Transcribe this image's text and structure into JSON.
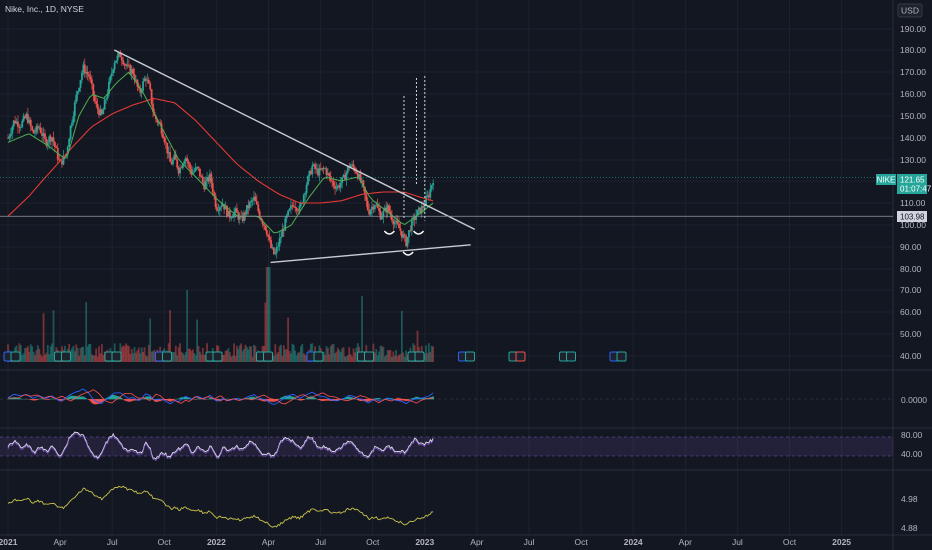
{
  "chart_data": {
    "type": "candlestick",
    "title": "Nike, Inc., 1D, NYSE",
    "currency": "USD",
    "symbol": "NIKE",
    "last_price": "121.65",
    "countdown": "01:07:47",
    "level_label": "103.98",
    "price_axis": [
      "190.00",
      "180.00",
      "170.00",
      "160.00",
      "150.00",
      "140.00",
      "130.00",
      "120.00",
      "110.00",
      "100.00",
      "90.00",
      "80.00",
      "70.00",
      "60.00",
      "50.00",
      "40.00"
    ],
    "price_ylim": [
      38,
      195
    ],
    "time_axis": [
      "2021",
      "Apr",
      "Jul",
      "Oct",
      "2022",
      "Apr",
      "Jul",
      "Oct",
      "2023",
      "Apr",
      "Jul",
      "Oct",
      "2024",
      "Apr",
      "Jul",
      "Oct",
      "2025"
    ],
    "time_axis_bold": [
      "2021",
      "2022",
      "2023",
      "2024",
      "2025"
    ],
    "price_path": [
      [
        0.0,
        140
      ],
      [
        0.03,
        148
      ],
      [
        0.06,
        146
      ],
      [
        0.09,
        150
      ],
      [
        0.12,
        142
      ],
      [
        0.15,
        145
      ],
      [
        0.18,
        138
      ],
      [
        0.21,
        141
      ],
      [
        0.25,
        128
      ],
      [
        0.28,
        133
      ],
      [
        0.3,
        145
      ],
      [
        0.33,
        160
      ],
      [
        0.36,
        172
      ],
      [
        0.39,
        168
      ],
      [
        0.42,
        155
      ],
      [
        0.45,
        150
      ],
      [
        0.48,
        162
      ],
      [
        0.51,
        175
      ],
      [
        0.54,
        178
      ],
      [
        0.57,
        172
      ],
      [
        0.6,
        170
      ],
      [
        0.63,
        160
      ],
      [
        0.66,
        168
      ],
      [
        0.68,
        162
      ],
      [
        0.7,
        150
      ],
      [
        0.73,
        146
      ],
      [
        0.75,
        140
      ],
      [
        0.78,
        128
      ],
      [
        0.8,
        131
      ],
      [
        0.82,
        125
      ],
      [
        0.85,
        132
      ],
      [
        0.88,
        124
      ],
      [
        0.91,
        126
      ],
      [
        0.94,
        118
      ],
      [
        0.97,
        122
      ],
      [
        1.0,
        108
      ],
      [
        1.03,
        110
      ],
      [
        1.06,
        104
      ],
      [
        1.09,
        106
      ],
      [
        1.12,
        102
      ],
      [
        1.15,
        108
      ],
      [
        1.18,
        112
      ],
      [
        1.21,
        104
      ],
      [
        1.24,
        98
      ],
      [
        1.26,
        90
      ],
      [
        1.28,
        86
      ],
      [
        1.31,
        95
      ],
      [
        1.34,
        104
      ],
      [
        1.37,
        110
      ],
      [
        1.4,
        107
      ],
      [
        1.43,
        118
      ],
      [
        1.46,
        127
      ],
      [
        1.49,
        124
      ],
      [
        1.52,
        126
      ],
      [
        1.55,
        120
      ],
      [
        1.58,
        117
      ],
      [
        1.61,
        121
      ],
      [
        1.64,
        128
      ],
      [
        1.67,
        125
      ],
      [
        1.7,
        118
      ],
      [
        1.73,
        106
      ],
      [
        1.76,
        110
      ],
      [
        1.79,
        104
      ],
      [
        1.82,
        108
      ],
      [
        1.85,
        102
      ],
      [
        1.88,
        98
      ],
      [
        1.91,
        92
      ],
      [
        1.93,
        99
      ],
      [
        1.96,
        105
      ],
      [
        1.99,
        108
      ],
      [
        2.02,
        114
      ],
      [
        2.04,
        121
      ]
    ],
    "sma50_path": [
      [
        0.0,
        138
      ],
      [
        0.1,
        142
      ],
      [
        0.2,
        136
      ],
      [
        0.28,
        130
      ],
      [
        0.34,
        150
      ],
      [
        0.4,
        160
      ],
      [
        0.46,
        158
      ],
      [
        0.52,
        165
      ],
      [
        0.58,
        170
      ],
      [
        0.64,
        162
      ],
      [
        0.72,
        148
      ],
      [
        0.82,
        130
      ],
      [
        0.92,
        120
      ],
      [
        1.0,
        112
      ],
      [
        1.1,
        104
      ],
      [
        1.2,
        104
      ],
      [
        1.28,
        96
      ],
      [
        1.36,
        100
      ],
      [
        1.44,
        112
      ],
      [
        1.52,
        122
      ],
      [
        1.6,
        120
      ],
      [
        1.68,
        122
      ],
      [
        1.74,
        112
      ],
      [
        1.82,
        106
      ],
      [
        1.9,
        100
      ],
      [
        1.96,
        104
      ],
      [
        2.04,
        110
      ]
    ],
    "sma200_path": [
      [
        0.0,
        104
      ],
      [
        0.1,
        113
      ],
      [
        0.2,
        124
      ],
      [
        0.3,
        135
      ],
      [
        0.4,
        145
      ],
      [
        0.5,
        151
      ],
      [
        0.6,
        155
      ],
      [
        0.7,
        158
      ],
      [
        0.8,
        156
      ],
      [
        0.9,
        148
      ],
      [
        1.0,
        138
      ],
      [
        1.1,
        128
      ],
      [
        1.2,
        120
      ],
      [
        1.3,
        114
      ],
      [
        1.4,
        110
      ],
      [
        1.5,
        110
      ],
      [
        1.6,
        111
      ],
      [
        1.7,
        114
      ],
      [
        1.8,
        115
      ],
      [
        1.9,
        115
      ],
      [
        2.0,
        112
      ],
      [
        2.04,
        111
      ]
    ],
    "triangle_upper": [
      [
        0.51,
        180
      ],
      [
        2.24,
        98
      ]
    ],
    "triangle_lower": [
      [
        1.26,
        83
      ],
      [
        2.22,
        91
      ]
    ],
    "horizontal_level": 103.98,
    "macd_axis": [
      "0.0000"
    ],
    "rsi_axis": [
      "80.00",
      "40.00"
    ],
    "rs_axis": [
      "4.98",
      "4.88"
    ]
  },
  "colors": {
    "background": "#131722",
    "grid": "#1e222d",
    "up": "#26a69a",
    "down": "#ef5350",
    "sma50": "#4caf50",
    "sma200": "#e53935",
    "trendline": "#b2b5be",
    "rsi_band": "#7e57c2",
    "rs_line": "#c9c34b",
    "macd_line": "#2962ff",
    "signal_line": "#ff5252",
    "tag_teal": "#26a69a"
  }
}
